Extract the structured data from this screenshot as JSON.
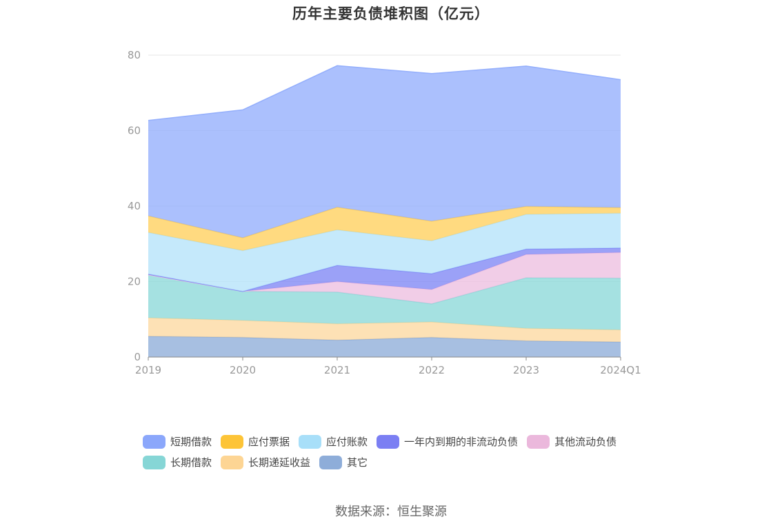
{
  "title": "历年主要负债堆积图（亿元）",
  "source": "数据来源：恒生聚源",
  "chart_data": {
    "type": "area",
    "stacked": true,
    "title": "历年主要负债堆积图（亿元）",
    "x": [
      "2019",
      "2020",
      "2021",
      "2022",
      "2023",
      "2024Q1"
    ],
    "ylim": [
      0,
      80
    ],
    "yticks": [
      0,
      20,
      40,
      60,
      80
    ],
    "grid": true,
    "legend_position": "bottom",
    "series": [
      {
        "name": "其它",
        "color": "#8eadd9",
        "values": [
          5.5,
          5.2,
          4.5,
          5.2,
          4.3,
          4.0
        ]
      },
      {
        "name": "长期递延收益",
        "color": "#fdd9a0",
        "values": [
          4.9,
          4.5,
          4.3,
          4.1,
          3.3,
          3.2
        ]
      },
      {
        "name": "长期借款",
        "color": "#8cd9d9",
        "values": [
          11.4,
          7.7,
          8.4,
          4.8,
          13.4,
          13.7
        ]
      },
      {
        "name": "其他流动负债",
        "color": "#edbfe0",
        "values": [
          0.0,
          0.0,
          2.8,
          3.8,
          6.2,
          6.8
        ]
      },
      {
        "name": "一年内到期的非流动负债",
        "color": "#7f86f5",
        "values": [
          0.2,
          0.0,
          4.3,
          4.2,
          1.4,
          1.2
        ]
      },
      {
        "name": "应付账款",
        "color": "#b5e3fa",
        "values": [
          11.0,
          10.8,
          9.4,
          8.7,
          9.2,
          9.2
        ]
      },
      {
        "name": "应付票据",
        "color": "#ffcf5c",
        "values": [
          4.4,
          3.4,
          6.0,
          5.2,
          2.1,
          1.5
        ]
      },
      {
        "name": "短期借款",
        "color": "#93aefc",
        "values": [
          25.3,
          33.9,
          37.5,
          39.1,
          37.2,
          33.9
        ]
      }
    ]
  },
  "legend": {
    "row1": [
      {
        "label": "短期借款",
        "color": "#8ba7fb"
      },
      {
        "label": "应付票据",
        "color": "#fdc437"
      },
      {
        "label": "应付账款",
        "color": "#a8dff9"
      },
      {
        "label": "一年内到期的非流动负债",
        "color": "#7b7ff3"
      },
      {
        "label": "其他流动负债",
        "color": "#ebb8dc"
      }
    ],
    "row2": [
      {
        "label": "长期借款",
        "color": "#86d6d6"
      },
      {
        "label": "长期递延收益",
        "color": "#fdd594"
      },
      {
        "label": "其它",
        "color": "#8eadd9"
      }
    ]
  }
}
